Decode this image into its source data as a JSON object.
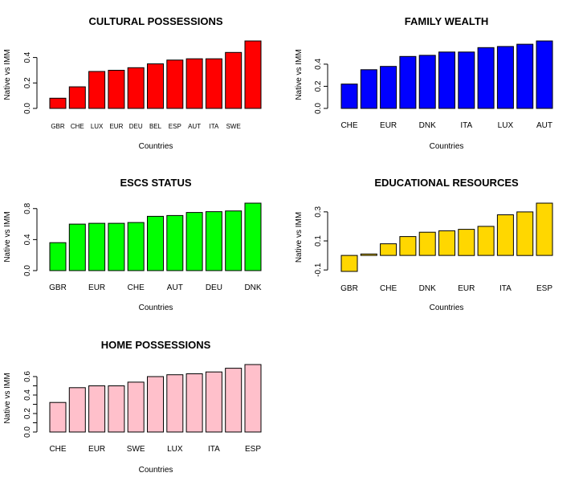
{
  "chart_data": [
    {
      "type": "bar",
      "title": "CULTURAL POSSESSIONS",
      "xlabel": "Countries",
      "ylabel": "Native vs IMM",
      "color": "#ff0000",
      "categories": [
        "GBR",
        "CHE",
        "LUX",
        "EUR",
        "DEU",
        "BEL",
        "ESP",
        "AUT",
        "ITA",
        "SWE",
        ""
      ],
      "values": [
        0.08,
        0.17,
        0.29,
        0.3,
        0.32,
        0.35,
        0.38,
        0.39,
        0.39,
        0.44,
        0.53
      ],
      "yticks": [
        0.0,
        0.2,
        0.4
      ],
      "ytick_labels": [
        "0.0",
        "0.2",
        "0.4"
      ],
      "ylim": [
        0,
        0.53
      ]
    },
    {
      "type": "bar",
      "title": "FAMILY WEALTH",
      "xlabel": "Countries",
      "ylabel": "Native vs IMM",
      "color": "#0000ff",
      "categories": [
        "CHE",
        "",
        "EUR",
        "",
        "DNK",
        "",
        "ITA",
        "",
        "LUX",
        "",
        "AUT"
      ],
      "values": [
        0.22,
        0.35,
        0.38,
        0.47,
        0.48,
        0.51,
        0.51,
        0.55,
        0.56,
        0.58,
        0.61
      ],
      "yticks": [
        0.0,
        0.2,
        0.4
      ],
      "ytick_labels": [
        "0.0",
        "0.2",
        "0.4"
      ],
      "ylim": [
        0,
        0.61
      ]
    },
    {
      "type": "bar",
      "title": "ESCS STATUS",
      "xlabel": "Countries",
      "ylabel": "Native vs IMM",
      "color": "#00ff00",
      "categories": [
        "GBR",
        "",
        "EUR",
        "",
        "CHE",
        "",
        "AUT",
        "",
        "DEU",
        "",
        "DNK"
      ],
      "values": [
        0.36,
        0.6,
        0.61,
        0.61,
        0.62,
        0.7,
        0.71,
        0.75,
        0.76,
        0.77,
        0.87
      ],
      "yticks": [
        0.0,
        0.4,
        0.8
      ],
      "ytick_labels": [
        "0.0",
        "0.4",
        "0.8"
      ],
      "ylim": [
        0,
        0.87
      ]
    },
    {
      "type": "bar",
      "title": "EDUCATIONAL RESOURCES",
      "xlabel": "Countries",
      "ylabel": "Native vs IMM",
      "color": "#ffd700",
      "categories": [
        "GBR",
        "",
        "CHE",
        "",
        "DNK",
        "",
        "EUR",
        "",
        "ITA",
        "",
        "ESP"
      ],
      "values": [
        -0.11,
        0.01,
        0.08,
        0.13,
        0.16,
        0.17,
        0.18,
        0.2,
        0.28,
        0.3,
        0.36
      ],
      "yticks": [
        -0.1,
        0.1,
        0.3
      ],
      "ytick_labels": [
        "-0.1",
        "0.1",
        "0.3"
      ],
      "ylim": [
        -0.11,
        0.36
      ]
    },
    {
      "type": "bar",
      "title": "HOME POSSESSIONS",
      "xlabel": "Countries",
      "ylabel": "Native vs IMM",
      "color": "#ffc0cb",
      "categories": [
        "CHE",
        "",
        "EUR",
        "",
        "SWE",
        "",
        "LUX",
        "",
        "ITA",
        "",
        "ESP"
      ],
      "values": [
        0.32,
        0.48,
        0.5,
        0.5,
        0.54,
        0.6,
        0.62,
        0.63,
        0.65,
        0.69,
        0.73
      ],
      "yticks": [
        0.0,
        0.1,
        0.2,
        0.3,
        0.4,
        0.5,
        0.6
      ],
      "ytick_labels": [
        "0.0",
        "",
        "0.2",
        "",
        "0.4",
        "",
        "0.6"
      ],
      "ylim": [
        0,
        0.73
      ]
    }
  ]
}
